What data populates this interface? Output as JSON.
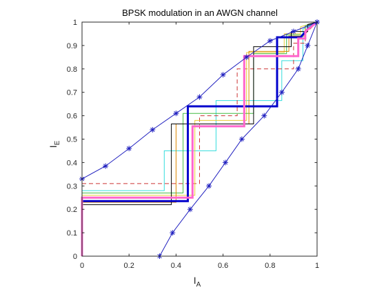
{
  "chart_data": {
    "type": "line",
    "title": "BPSK modulation in an AWGN channel",
    "xlabel": "I",
    "xlabel_sub": "A",
    "ylabel": "I",
    "ylabel_sub": "E",
    "xlim": [
      0,
      1
    ],
    "ylim": [
      0,
      1
    ],
    "xticks": [
      0,
      0.2,
      0.4,
      0.6,
      0.8,
      1
    ],
    "yticks": [
      0,
      0.1,
      0.2,
      0.3,
      0.4,
      0.5,
      0.6,
      0.7,
      0.8,
      0.9,
      1
    ],
    "grid": false,
    "series": [
      {
        "color": "#1f1fbf",
        "style": "solid",
        "width": 1,
        "marker": "asterisk",
        "x": [
          0,
          0.1,
          0.2,
          0.3,
          0.4,
          0.5,
          0.6,
          0.7,
          0.8,
          0.9,
          1
        ],
        "y": [
          0.33,
          0.385,
          0.46,
          0.54,
          0.61,
          0.68,
          0.775,
          0.85,
          0.92,
          0.96,
          1
        ]
      },
      {
        "color": "#1f1fbf",
        "style": "solid",
        "width": 1,
        "marker": "asterisk",
        "x": [
          0.33,
          0.385,
          0.46,
          0.54,
          0.61,
          0.68,
          0.775,
          0.85,
          0.92,
          0.96,
          1
        ],
        "y": [
          0,
          0.1,
          0.2,
          0.3,
          0.4,
          0.5,
          0.6,
          0.7,
          0.8,
          0.9,
          1
        ]
      },
      {
        "color": "#ff66cc",
        "style": "solid",
        "width": 3,
        "x": [
          0,
          0,
          0.47,
          0.47,
          0.69,
          0.69,
          0.92,
          0.92,
          0.95,
          0.95,
          1
        ],
        "y": [
          0,
          0.25,
          0.25,
          0.555,
          0.555,
          0.855,
          0.855,
          0.93,
          0.93,
          0.96,
          1
        ]
      },
      {
        "color": "#0000cc",
        "style": "solid",
        "width": 3,
        "x": [
          0,
          0.45,
          0.45,
          0.74,
          0.74,
          0.83,
          0.83,
          0.93,
          0.93,
          0.96,
          1
        ],
        "y": [
          0.235,
          0.235,
          0.64,
          0.64,
          0.64,
          0.64,
          0.935,
          0.935,
          0.935,
          0.97,
          1
        ]
      },
      {
        "color": "#000000",
        "style": "solid",
        "width": 1,
        "x": [
          0,
          0.38,
          0.38,
          0.73,
          0.73,
          0.89,
          0.89,
          0.96,
          0.96,
          1
        ],
        "y": [
          0.22,
          0.22,
          0.565,
          0.565,
          0.895,
          0.895,
          0.96,
          0.96,
          0.99,
          1
        ]
      },
      {
        "color": "#dd8800",
        "style": "solid",
        "width": 1,
        "x": [
          0,
          0.4,
          0.4,
          0.71,
          0.71,
          0.88,
          0.88,
          0.95,
          0.95,
          1
        ],
        "y": [
          0.23,
          0.23,
          0.565,
          0.565,
          0.875,
          0.875,
          0.94,
          0.94,
          0.98,
          1
        ]
      },
      {
        "color": "#44bb44",
        "style": "solid",
        "width": 1,
        "x": [
          0,
          0.43,
          0.43,
          0.73,
          0.73,
          0.87,
          0.87,
          0.95,
          0.95,
          1
        ],
        "y": [
          0.27,
          0.27,
          0.61,
          0.61,
          0.865,
          0.865,
          0.945,
          0.945,
          0.985,
          1
        ]
      },
      {
        "color": "#e8cc33",
        "style": "solid",
        "width": 1,
        "x": [
          0,
          0.48,
          0.48,
          0.7,
          0.7,
          0.86,
          0.86,
          0.93,
          0.93,
          1
        ],
        "y": [
          0.26,
          0.26,
          0.58,
          0.58,
          0.87,
          0.87,
          0.95,
          0.95,
          0.98,
          1
        ]
      },
      {
        "color": "#cc3333",
        "style": "dashed",
        "width": 1,
        "x": [
          0,
          0.5,
          0.5,
          0.66,
          0.66,
          0.9,
          0.9,
          0.95,
          0.95,
          1
        ],
        "y": [
          0.31,
          0.31,
          0.6,
          0.6,
          0.8,
          0.8,
          0.91,
          0.91,
          0.95,
          1
        ]
      },
      {
        "color": "#33dddd",
        "style": "solid",
        "width": 1,
        "x": [
          0,
          0.35,
          0.35,
          0.57,
          0.57,
          0.85,
          0.85,
          0.94,
          0.94,
          1
        ],
        "y": [
          0.28,
          0.28,
          0.45,
          0.45,
          0.665,
          0.665,
          0.835,
          0.835,
          0.97,
          1
        ]
      }
    ]
  }
}
